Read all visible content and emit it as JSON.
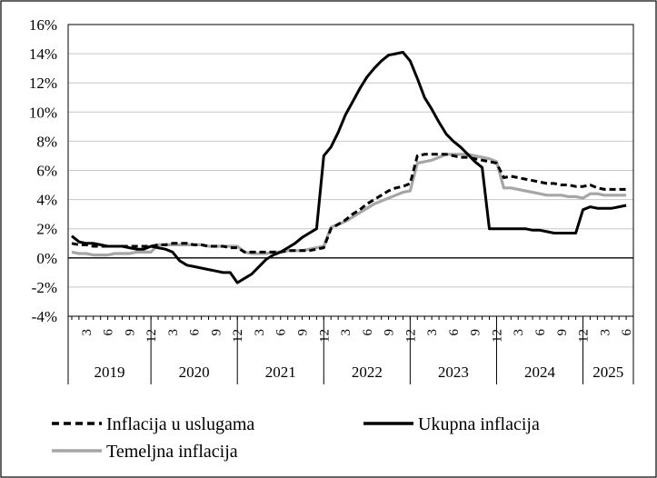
{
  "chart_data": {
    "type": "line",
    "title": "",
    "xlabel": "",
    "ylabel": "",
    "ylim": [
      -4,
      16
    ],
    "y_ticks": [
      "-4%",
      "-2%",
      "0%",
      "2%",
      "4%",
      "6%",
      "8%",
      "10%",
      "12%",
      "14%",
      "16%"
    ],
    "x_start": "2019-01",
    "x_end": "2025-06",
    "month_tick_labels": [
      "3",
      "6",
      "9",
      "12"
    ],
    "years": [
      "2019",
      "2020",
      "2021",
      "2022",
      "2023",
      "2024",
      "2025"
    ],
    "grid": "horizontal",
    "legend_position": "bottom",
    "series": [
      {
        "name": "Inflacija u uslugama",
        "color": "#000000",
        "style": "dashed",
        "values": [
          1.0,
          0.9,
          0.9,
          0.8,
          0.8,
          0.8,
          0.8,
          0.8,
          0.8,
          0.8,
          0.8,
          0.8,
          0.9,
          0.9,
          1.0,
          1.0,
          1.0,
          0.9,
          0.9,
          0.8,
          0.8,
          0.8,
          0.7,
          0.7,
          0.4,
          0.4,
          0.4,
          0.4,
          0.4,
          0.4,
          0.5,
          0.5,
          0.5,
          0.5,
          0.6,
          0.7,
          2.0,
          2.3,
          2.6,
          3.0,
          3.3,
          3.7,
          4.0,
          4.3,
          4.6,
          4.8,
          4.9,
          5.1,
          7.0,
          7.1,
          7.1,
          7.1,
          7.1,
          7.0,
          6.9,
          6.9,
          6.8,
          6.7,
          6.6,
          6.5,
          5.5,
          5.6,
          5.5,
          5.4,
          5.3,
          5.2,
          5.1,
          5.1,
          5.0,
          5.0,
          4.9,
          4.9,
          5.0,
          4.8,
          4.7,
          4.7,
          4.7,
          4.7
        ]
      },
      {
        "name": "Ukupna inflacija",
        "color": "#000000",
        "style": "solid",
        "values": [
          1.5,
          1.1,
          1.0,
          1.0,
          0.9,
          0.8,
          0.8,
          0.8,
          0.7,
          0.6,
          0.6,
          0.8,
          0.7,
          0.6,
          0.4,
          -0.2,
          -0.5,
          -0.6,
          -0.7,
          -0.8,
          -0.9,
          -1.0,
          -1.0,
          -1.7,
          -1.4,
          -1.1,
          -0.6,
          -0.1,
          0.2,
          0.4,
          0.7,
          1.0,
          1.4,
          1.7,
          2.0,
          7.0,
          7.6,
          8.6,
          9.8,
          10.7,
          11.6,
          12.4,
          13.0,
          13.5,
          13.9,
          14.0,
          14.1,
          13.5,
          12.3,
          11.0,
          10.2,
          9.3,
          8.5,
          8.0,
          7.6,
          7.1,
          6.6,
          6.2,
          2.0,
          2.0,
          2.0,
          2.0,
          2.0,
          2.0,
          1.9,
          1.9,
          1.8,
          1.7,
          1.7,
          1.7,
          1.7,
          3.3,
          3.5,
          3.4,
          3.4,
          3.4,
          3.5,
          3.6
        ]
      },
      {
        "name": "Temeljna inflacija",
        "color": "#a6a6a6",
        "style": "solid",
        "values": [
          0.4,
          0.3,
          0.3,
          0.2,
          0.2,
          0.2,
          0.3,
          0.3,
          0.3,
          0.4,
          0.4,
          0.4,
          0.9,
          0.9,
          0.9,
          0.9,
          0.9,
          0.9,
          0.9,
          0.8,
          0.8,
          0.8,
          0.8,
          0.8,
          0.4,
          0.3,
          0.3,
          0.3,
          0.4,
          0.4,
          0.5,
          0.5,
          0.5,
          0.6,
          0.7,
          0.8,
          2.1,
          2.3,
          2.5,
          2.8,
          3.1,
          3.4,
          3.7,
          3.9,
          4.1,
          4.3,
          4.5,
          4.6,
          6.5,
          6.6,
          6.7,
          6.9,
          7.1,
          7.1,
          7.1,
          7.1,
          7.0,
          6.9,
          6.8,
          6.6,
          4.8,
          4.8,
          4.7,
          4.6,
          4.5,
          4.4,
          4.3,
          4.3,
          4.3,
          4.2,
          4.2,
          4.1,
          4.4,
          4.4,
          4.3,
          4.3,
          4.3,
          4.3
        ]
      }
    ]
  }
}
